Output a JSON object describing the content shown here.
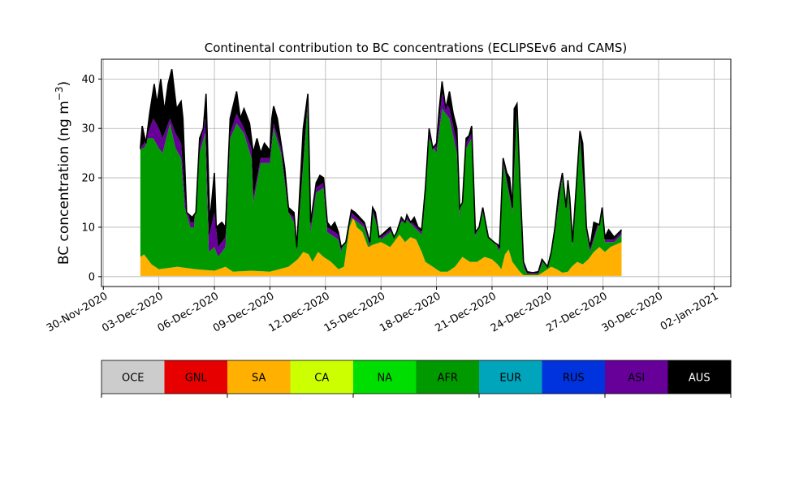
{
  "chart_data": {
    "type": "area",
    "stacked": true,
    "title": "Continental contribution to BC concentrations (ECLIPSEv6 and CAMS)",
    "ylabel": "BC concentration (ng m",
    "ylabel_superscript": "−3",
    "ylabel_suffix": ")",
    "xlabel": "",
    "ylim": [
      -2,
      44
    ],
    "yticks": [
      0,
      10,
      20,
      30,
      40
    ],
    "x_start_day": 2,
    "x_end_day": 33,
    "xlim_days": [
      -0.1,
      33.9
    ],
    "grid": true,
    "xticks": [
      {
        "day": 0,
        "label": "30-Nov-2020"
      },
      {
        "day": 3,
        "label": "03-Dec-2020"
      },
      {
        "day": 6,
        "label": "06-Dec-2020"
      },
      {
        "day": 9,
        "label": "09-Dec-2020"
      },
      {
        "day": 12,
        "label": "12-Dec-2020"
      },
      {
        "day": 15,
        "label": "15-Dec-2020"
      },
      {
        "day": 18,
        "label": "18-Dec-2020"
      },
      {
        "day": 21,
        "label": "21-Dec-2020"
      },
      {
        "day": 24,
        "label": "24-Dec-2020"
      },
      {
        "day": 27,
        "label": "27-Dec-2020"
      },
      {
        "day": 30,
        "label": "30-Dec-2020"
      },
      {
        "day": 33,
        "label": "02-Jan-2021"
      }
    ],
    "total_key": [
      [
        2.0,
        26
      ],
      [
        2.1,
        30.5
      ],
      [
        2.3,
        27
      ],
      [
        2.5,
        33
      ],
      [
        2.75,
        39
      ],
      [
        2.9,
        35
      ],
      [
        3.1,
        40
      ],
      [
        3.3,
        33.5
      ],
      [
        3.5,
        39
      ],
      [
        3.7,
        42
      ],
      [
        3.95,
        34
      ],
      [
        4.2,
        35.5
      ],
      [
        4.3,
        32
      ],
      [
        4.5,
        13
      ],
      [
        4.8,
        12
      ],
      [
        5.0,
        13
      ],
      [
        5.2,
        28
      ],
      [
        5.4,
        30
      ],
      [
        5.55,
        37
      ],
      [
        5.75,
        11
      ],
      [
        6.0,
        21
      ],
      [
        6.1,
        10
      ],
      [
        6.4,
        11
      ],
      [
        6.6,
        10
      ],
      [
        6.85,
        32
      ],
      [
        7.2,
        37.5
      ],
      [
        7.4,
        32
      ],
      [
        7.6,
        34
      ],
      [
        7.9,
        31
      ],
      [
        8.1,
        25
      ],
      [
        8.3,
        28
      ],
      [
        8.5,
        25
      ],
      [
        8.7,
        27
      ],
      [
        9.0,
        25.5
      ],
      [
        9.1,
        32
      ],
      [
        9.2,
        34.5
      ],
      [
        9.4,
        32
      ],
      [
        9.8,
        22
      ],
      [
        10.0,
        14
      ],
      [
        10.3,
        13
      ],
      [
        10.45,
        6
      ],
      [
        10.8,
        30
      ],
      [
        11.05,
        37
      ],
      [
        11.2,
        11
      ],
      [
        11.5,
        19
      ],
      [
        11.7,
        20.5
      ],
      [
        11.9,
        20
      ],
      [
        12.1,
        11
      ],
      [
        12.3,
        10
      ],
      [
        12.5,
        11
      ],
      [
        12.7,
        9
      ],
      [
        12.85,
        6
      ],
      [
        13.1,
        7
      ],
      [
        13.4,
        13.5
      ],
      [
        13.6,
        13
      ],
      [
        13.85,
        12
      ],
      [
        14.1,
        11
      ],
      [
        14.4,
        7
      ],
      [
        14.55,
        14
      ],
      [
        14.7,
        13
      ],
      [
        14.9,
        8
      ],
      [
        15.2,
        9
      ],
      [
        15.5,
        10
      ],
      [
        15.7,
        8
      ],
      [
        15.85,
        9
      ],
      [
        16.1,
        12
      ],
      [
        16.3,
        11
      ],
      [
        16.4,
        12.5
      ],
      [
        16.6,
        11
      ],
      [
        16.8,
        12
      ],
      [
        17.0,
        10
      ],
      [
        17.2,
        9.5
      ],
      [
        17.4,
        18
      ],
      [
        17.6,
        30
      ],
      [
        17.8,
        26
      ],
      [
        18.0,
        27
      ],
      [
        18.15,
        34
      ],
      [
        18.3,
        39.5
      ],
      [
        18.5,
        34
      ],
      [
        18.7,
        37.5
      ],
      [
        18.9,
        33
      ],
      [
        19.1,
        30
      ],
      [
        19.25,
        14
      ],
      [
        19.4,
        15
      ],
      [
        19.6,
        28
      ],
      [
        19.75,
        28.5
      ],
      [
        19.9,
        30.5
      ],
      [
        20.1,
        9
      ],
      [
        20.3,
        10
      ],
      [
        20.5,
        14
      ],
      [
        20.8,
        8
      ],
      [
        21.1,
        7
      ],
      [
        21.3,
        6.5
      ],
      [
        21.4,
        6
      ],
      [
        21.6,
        24
      ],
      [
        21.8,
        21
      ],
      [
        21.95,
        20
      ],
      [
        22.1,
        14
      ],
      [
        22.2,
        34
      ],
      [
        22.35,
        35
      ],
      [
        22.5,
        20
      ],
      [
        22.7,
        3
      ],
      [
        22.9,
        1
      ],
      [
        23.2,
        0.8
      ],
      [
        23.5,
        1
      ],
      [
        23.7,
        3.5
      ],
      [
        24.0,
        2
      ],
      [
        24.2,
        5
      ],
      [
        24.4,
        10
      ],
      [
        24.6,
        17
      ],
      [
        24.8,
        21
      ],
      [
        25.0,
        14
      ],
      [
        25.1,
        19.5
      ],
      [
        25.2,
        16
      ],
      [
        25.35,
        7
      ],
      [
        25.6,
        21
      ],
      [
        25.75,
        29.5
      ],
      [
        25.9,
        27
      ],
      [
        26.1,
        10
      ],
      [
        26.3,
        6
      ],
      [
        26.5,
        11
      ],
      [
        26.8,
        10.5
      ],
      [
        26.95,
        14
      ],
      [
        27.1,
        8
      ],
      [
        27.3,
        9.5
      ],
      [
        27.6,
        8
      ],
      [
        28.0,
        9.5
      ]
    ],
    "asia_key": [
      [
        2.0,
        26
      ],
      [
        2.2,
        27
      ],
      [
        2.4,
        29
      ],
      [
        2.7,
        32
      ],
      [
        3.0,
        30
      ],
      [
        3.2,
        28
      ],
      [
        3.6,
        32
      ],
      [
        3.9,
        29
      ],
      [
        4.2,
        27
      ],
      [
        4.4,
        16
      ],
      [
        4.7,
        11
      ],
      [
        4.9,
        11
      ],
      [
        5.2,
        26
      ],
      [
        5.5,
        32
      ],
      [
        5.7,
        8
      ],
      [
        6.0,
        13
      ],
      [
        6.2,
        6
      ],
      [
        6.6,
        8
      ],
      [
        6.85,
        29
      ],
      [
        7.2,
        33
      ],
      [
        7.6,
        30
      ],
      [
        8.0,
        26
      ],
      [
        8.1,
        16
      ],
      [
        8.5,
        24
      ],
      [
        9.0,
        24
      ],
      [
        9.2,
        31
      ],
      [
        9.6,
        26
      ],
      [
        10.0,
        13
      ],
      [
        10.3,
        12
      ],
      [
        10.45,
        5
      ],
      [
        11.05,
        36
      ],
      [
        11.2,
        10
      ],
      [
        11.5,
        18
      ],
      [
        11.9,
        19
      ],
      [
        12.1,
        10
      ],
      [
        12.7,
        8.5
      ],
      [
        12.85,
        5.5
      ],
      [
        13.4,
        13
      ],
      [
        14.1,
        10.5
      ],
      [
        14.4,
        6.5
      ],
      [
        14.55,
        13.5
      ],
      [
        15.0,
        8
      ],
      [
        15.5,
        9.5
      ],
      [
        16.1,
        11.5
      ],
      [
        16.4,
        12
      ],
      [
        17.2,
        9
      ],
      [
        17.6,
        29
      ],
      [
        18.0,
        26
      ],
      [
        18.3,
        37
      ],
      [
        18.7,
        34
      ],
      [
        19.1,
        27
      ],
      [
        19.25,
        13
      ],
      [
        19.6,
        27
      ],
      [
        19.9,
        29
      ],
      [
        20.1,
        8.5
      ],
      [
        20.5,
        13.5
      ],
      [
        21.4,
        5.5
      ],
      [
        21.6,
        23.5
      ],
      [
        22.1,
        13.5
      ],
      [
        22.35,
        34.5
      ],
      [
        22.7,
        2.5
      ],
      [
        22.9,
        0.7
      ],
      [
        23.5,
        0.7
      ],
      [
        23.7,
        3
      ],
      [
        24.4,
        9.5
      ],
      [
        24.8,
        20.5
      ],
      [
        25.1,
        19
      ],
      [
        25.35,
        6.5
      ],
      [
        25.75,
        29
      ],
      [
        26.1,
        9.5
      ],
      [
        26.3,
        5.5
      ],
      [
        26.95,
        13.5
      ],
      [
        27.1,
        7.5
      ],
      [
        27.6,
        7.5
      ],
      [
        28.0,
        9
      ]
    ],
    "afr_key": [
      [
        2.0,
        26
      ],
      [
        2.2,
        26
      ],
      [
        2.4,
        28
      ],
      [
        2.7,
        28
      ],
      [
        3.0,
        26
      ],
      [
        3.2,
        25
      ],
      [
        3.6,
        31
      ],
      [
        3.9,
        26
      ],
      [
        4.2,
        24
      ],
      [
        4.4,
        14
      ],
      [
        4.7,
        10
      ],
      [
        4.9,
        10
      ],
      [
        5.2,
        25
      ],
      [
        5.5,
        29
      ],
      [
        5.7,
        5
      ],
      [
        6.0,
        6
      ],
      [
        6.2,
        4
      ],
      [
        6.6,
        6
      ],
      [
        6.85,
        28
      ],
      [
        7.2,
        31
      ],
      [
        7.6,
        29
      ],
      [
        8.0,
        24
      ],
      [
        8.1,
        15
      ],
      [
        8.5,
        23
      ],
      [
        9.0,
        23
      ],
      [
        9.2,
        30
      ],
      [
        9.6,
        25
      ],
      [
        10.0,
        13
      ],
      [
        10.3,
        11
      ],
      [
        10.45,
        5
      ],
      [
        11.05,
        35
      ],
      [
        11.2,
        9
      ],
      [
        11.5,
        17
      ],
      [
        11.9,
        18
      ],
      [
        12.1,
        9
      ],
      [
        12.7,
        7.5
      ],
      [
        12.85,
        5
      ],
      [
        13.4,
        12
      ],
      [
        14.1,
        10
      ],
      [
        14.4,
        6
      ],
      [
        14.55,
        13
      ],
      [
        15.0,
        7.5
      ],
      [
        15.5,
        9
      ],
      [
        16.1,
        11
      ],
      [
        16.4,
        11.5
      ],
      [
        17.2,
        8.5
      ],
      [
        17.6,
        28
      ],
      [
        18.0,
        25
      ],
      [
        18.3,
        34
      ],
      [
        18.7,
        32
      ],
      [
        19.1,
        25
      ],
      [
        19.25,
        12
      ],
      [
        19.6,
        26
      ],
      [
        19.9,
        28
      ],
      [
        20.1,
        8
      ],
      [
        20.5,
        13
      ],
      [
        21.4,
        5
      ],
      [
        21.6,
        23
      ],
      [
        22.1,
        13
      ],
      [
        22.35,
        34
      ],
      [
        22.7,
        2
      ],
      [
        22.9,
        0.5
      ],
      [
        23.5,
        0.5
      ],
      [
        23.7,
        2.5
      ],
      [
        24.4,
        9
      ],
      [
        24.8,
        20
      ],
      [
        25.1,
        18.5
      ],
      [
        25.35,
        6
      ],
      [
        25.75,
        28.5
      ],
      [
        26.1,
        9
      ],
      [
        26.3,
        5
      ],
      [
        26.95,
        13
      ],
      [
        27.1,
        7
      ],
      [
        27.6,
        7
      ],
      [
        28.0,
        8.5
      ]
    ],
    "sa_key": [
      [
        2.0,
        4
      ],
      [
        2.2,
        4.5
      ],
      [
        2.4,
        3.5
      ],
      [
        2.6,
        2.5
      ],
      [
        3.0,
        1.5
      ],
      [
        4.0,
        2
      ],
      [
        5.0,
        1.5
      ],
      [
        6.0,
        1.2
      ],
      [
        6.6,
        2
      ],
      [
        7.0,
        1
      ],
      [
        8.0,
        1.2
      ],
      [
        9.0,
        1
      ],
      [
        10.0,
        2
      ],
      [
        10.5,
        3.5
      ],
      [
        10.8,
        5
      ],
      [
        11.1,
        4.5
      ],
      [
        11.3,
        3
      ],
      [
        11.6,
        5
      ],
      [
        11.9,
        4
      ],
      [
        12.3,
        3
      ],
      [
        12.7,
        1.5
      ],
      [
        13.0,
        2
      ],
      [
        13.3,
        10
      ],
      [
        13.5,
        12
      ],
      [
        13.7,
        10
      ],
      [
        14.0,
        9
      ],
      [
        14.3,
        6
      ],
      [
        14.6,
        6.5
      ],
      [
        15.0,
        7
      ],
      [
        15.5,
        6
      ],
      [
        16.0,
        8.5
      ],
      [
        16.3,
        7
      ],
      [
        16.6,
        8
      ],
      [
        16.9,
        7.5
      ],
      [
        17.2,
        5
      ],
      [
        17.4,
        3
      ],
      [
        17.8,
        2
      ],
      [
        18.2,
        1
      ],
      [
        18.6,
        1
      ],
      [
        19.0,
        2
      ],
      [
        19.4,
        4
      ],
      [
        19.8,
        3
      ],
      [
        20.2,
        3
      ],
      [
        20.6,
        4
      ],
      [
        21.0,
        3.5
      ],
      [
        21.3,
        2.5
      ],
      [
        21.5,
        1.5
      ],
      [
        21.7,
        4.5
      ],
      [
        21.9,
        5.5
      ],
      [
        22.1,
        3
      ],
      [
        22.3,
        2
      ],
      [
        22.5,
        1
      ],
      [
        22.7,
        0.3
      ],
      [
        23.5,
        0.3
      ],
      [
        23.8,
        1
      ],
      [
        24.2,
        2
      ],
      [
        24.5,
        1.5
      ],
      [
        24.8,
        0.8
      ],
      [
        25.1,
        1
      ],
      [
        25.3,
        2
      ],
      [
        25.6,
        3
      ],
      [
        25.9,
        2.5
      ],
      [
        26.2,
        3.5
      ],
      [
        26.5,
        5
      ],
      [
        26.8,
        6
      ],
      [
        27.1,
        5
      ],
      [
        27.4,
        6
      ],
      [
        27.7,
        6.5
      ],
      [
        28.0,
        7
      ]
    ],
    "series": [
      {
        "name": "OCE",
        "color": "#cccccc",
        "text_color": "#000000"
      },
      {
        "name": "GNL",
        "color": "#e60000",
        "text_color": "#000000"
      },
      {
        "name": "SA",
        "color": "#ffb000",
        "text_color": "#000000"
      },
      {
        "name": "CA",
        "color": "#ccff00",
        "text_color": "#000000"
      },
      {
        "name": "NA",
        "color": "#00dd00",
        "text_color": "#000000"
      },
      {
        "name": "AFR",
        "color": "#009900",
        "text_color": "#000000"
      },
      {
        "name": "EUR",
        "color": "#00a4bb",
        "text_color": "#000000"
      },
      {
        "name": "RUS",
        "color": "#0033dd",
        "text_color": "#000000"
      },
      {
        "name": "ASI",
        "color": "#660099",
        "text_color": "#000000"
      },
      {
        "name": "AUS",
        "color": "#000000",
        "text_color": "#ffffff"
      }
    ]
  }
}
